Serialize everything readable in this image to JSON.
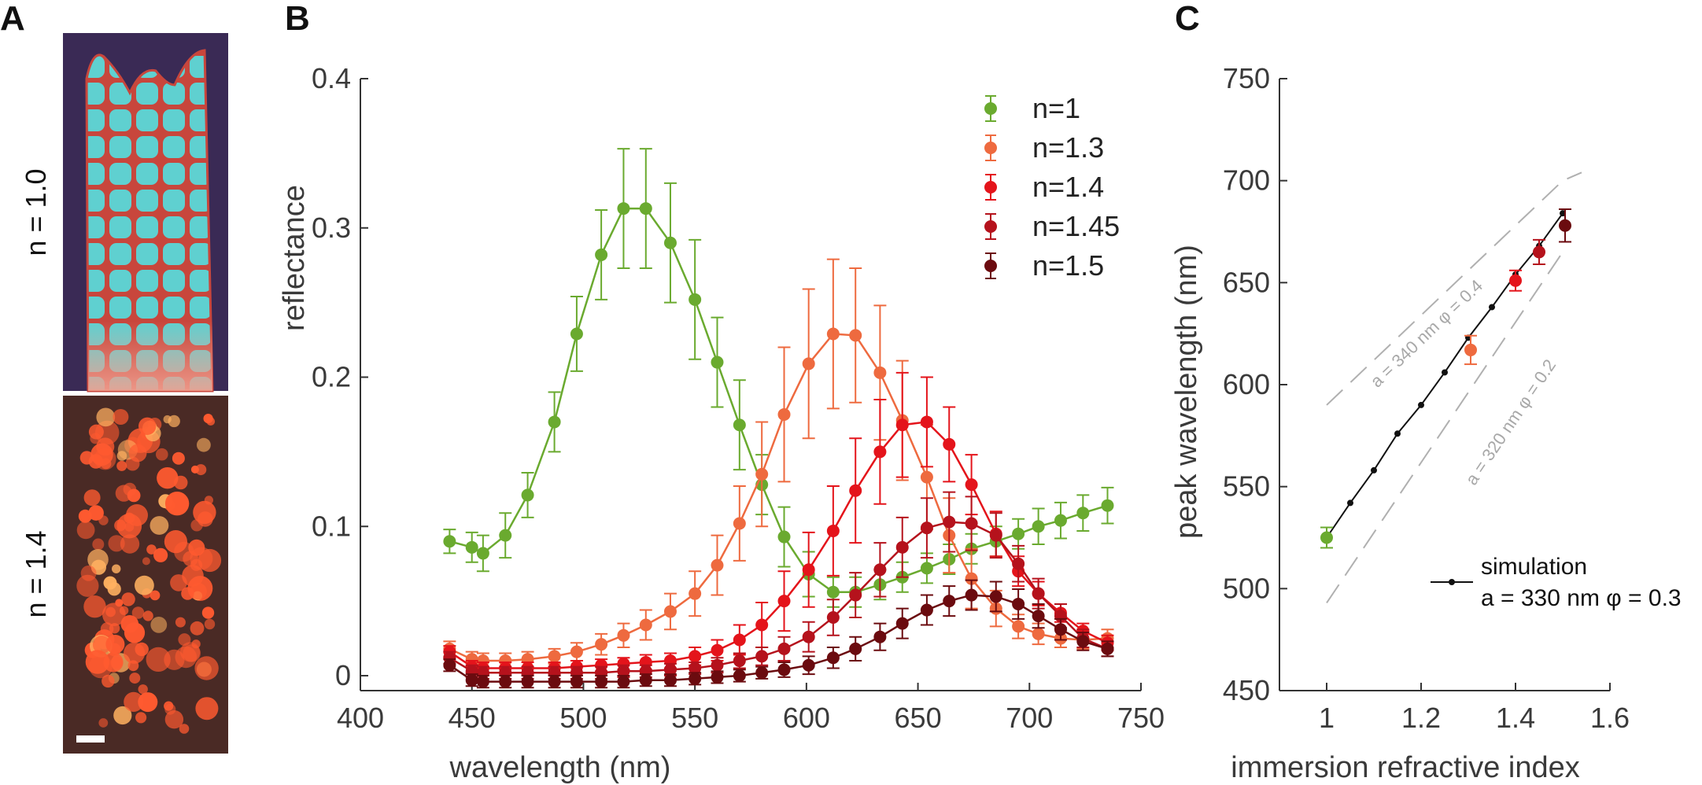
{
  "panels": {
    "a_letter": "A",
    "b_letter": "B",
    "c_letter": "C"
  },
  "photos": {
    "top_label": "n = 1.0",
    "bottom_label": "n = 1.4",
    "top_colors": {
      "background": "#3a2a55",
      "cell": "#5fd0d0",
      "base": "#f0a090",
      "border": "#c8463c"
    },
    "bottom_colors": {
      "background": "#4a2a25",
      "cell": "#ff5a30",
      "highlight": "#ffb060"
    }
  },
  "chart_data": [
    {
      "type": "line",
      "panel": "B",
      "xlabel": "wavelength (nm)",
      "ylabel": "reflectance",
      "xlim": [
        400,
        750
      ],
      "ylim": [
        -0.01,
        0.4
      ],
      "xticks": [
        400,
        450,
        500,
        550,
        600,
        650,
        700,
        750
      ],
      "yticks": [
        0,
        0.1,
        0.2,
        0.3,
        0.4
      ],
      "ytick_labels": [
        "0",
        "0.1",
        "0.2",
        "0.3",
        "0.4"
      ],
      "legend_position": "top-right",
      "x": [
        440,
        450,
        455,
        465,
        475,
        487,
        497,
        508,
        518,
        528,
        539,
        550,
        560,
        570,
        580,
        590,
        601,
        612,
        622,
        633,
        643,
        654,
        664,
        674,
        685,
        695,
        704,
        714,
        724,
        735
      ],
      "series": [
        {
          "name": "n=1",
          "color": "#6aaa2f",
          "values": [
            0.09,
            0.086,
            0.082,
            0.094,
            0.121,
            0.17,
            0.229,
            0.282,
            0.313,
            0.313,
            0.29,
            0.252,
            0.21,
            0.168,
            0.128,
            0.093,
            0.068,
            0.056,
            0.056,
            0.061,
            0.066,
            0.072,
            0.078,
            0.085,
            0.09,
            0.095,
            0.1,
            0.104,
            0.109,
            0.114
          ],
          "errors": [
            0.008,
            0.01,
            0.012,
            0.015,
            0.015,
            0.02,
            0.025,
            0.03,
            0.04,
            0.04,
            0.04,
            0.04,
            0.03,
            0.03,
            0.02,
            0.02,
            0.015,
            0.01,
            0.01,
            0.01,
            0.01,
            0.01,
            0.01,
            0.01,
            0.01,
            0.01,
            0.012,
            0.012,
            0.012,
            0.012
          ]
        },
        {
          "name": "n=1.3",
          "color": "#ee6a3f",
          "values": [
            0.018,
            0.011,
            0.01,
            0.01,
            0.011,
            0.013,
            0.016,
            0.021,
            0.027,
            0.034,
            0.043,
            0.055,
            0.074,
            0.102,
            0.135,
            0.175,
            0.209,
            0.229,
            0.228,
            0.203,
            0.171,
            0.133,
            0.094,
            0.065,
            0.045,
            0.033,
            0.028,
            0.025,
            0.024,
            0.025
          ],
          "errors": [
            0.005,
            0.005,
            0.005,
            0.005,
            0.005,
            0.005,
            0.006,
            0.007,
            0.008,
            0.01,
            0.012,
            0.015,
            0.02,
            0.025,
            0.035,
            0.045,
            0.05,
            0.05,
            0.045,
            0.045,
            0.04,
            0.035,
            0.025,
            0.02,
            0.012,
            0.008,
            0.007,
            0.006,
            0.006,
            0.006
          ]
        },
        {
          "name": "n=1.4",
          "color": "#e4141b",
          "values": [
            0.016,
            0.006,
            0.005,
            0.005,
            0.005,
            0.005,
            0.006,
            0.007,
            0.008,
            0.009,
            0.01,
            0.013,
            0.017,
            0.024,
            0.034,
            0.05,
            0.071,
            0.097,
            0.124,
            0.15,
            0.168,
            0.17,
            0.155,
            0.128,
            0.095,
            0.07,
            0.055,
            0.042,
            0.03,
            0.022
          ],
          "errors": [
            0.004,
            0.004,
            0.004,
            0.004,
            0.004,
            0.004,
            0.004,
            0.004,
            0.004,
            0.005,
            0.005,
            0.006,
            0.007,
            0.01,
            0.015,
            0.02,
            0.025,
            0.03,
            0.035,
            0.035,
            0.035,
            0.03,
            0.025,
            0.02,
            0.015,
            0.01,
            0.008,
            0.006,
            0.005,
            0.005
          ]
        },
        {
          "name": "n=1.45",
          "color": "#b5121c",
          "values": [
            0.012,
            0.003,
            0.002,
            0.002,
            0.002,
            0.002,
            0.002,
            0.002,
            0.003,
            0.003,
            0.004,
            0.005,
            0.007,
            0.01,
            0.013,
            0.018,
            0.026,
            0.039,
            0.054,
            0.071,
            0.086,
            0.099,
            0.103,
            0.102,
            0.094,
            0.075,
            0.055,
            0.04,
            0.025,
            0.018
          ],
          "errors": [
            0.004,
            0.004,
            0.004,
            0.004,
            0.004,
            0.004,
            0.004,
            0.004,
            0.004,
            0.004,
            0.004,
            0.004,
            0.005,
            0.005,
            0.006,
            0.008,
            0.01,
            0.012,
            0.015,
            0.018,
            0.02,
            0.02,
            0.02,
            0.018,
            0.015,
            0.012,
            0.01,
            0.008,
            0.006,
            0.005
          ]
        },
        {
          "name": "n=1.5",
          "color": "#6b0b0f",
          "values": [
            0.007,
            -0.003,
            -0.004,
            -0.004,
            -0.004,
            -0.004,
            -0.004,
            -0.004,
            -0.004,
            -0.003,
            -0.003,
            -0.002,
            -0.001,
            0.0,
            0.002,
            0.004,
            0.007,
            0.012,
            0.018,
            0.026,
            0.035,
            0.044,
            0.05,
            0.054,
            0.053,
            0.048,
            0.04,
            0.031,
            0.023,
            0.018
          ],
          "errors": [
            0.004,
            0.004,
            0.004,
            0.004,
            0.004,
            0.004,
            0.004,
            0.004,
            0.004,
            0.004,
            0.004,
            0.004,
            0.004,
            0.004,
            0.004,
            0.005,
            0.006,
            0.007,
            0.008,
            0.009,
            0.01,
            0.01,
            0.01,
            0.01,
            0.01,
            0.01,
            0.008,
            0.007,
            0.006,
            0.005
          ]
        }
      ]
    },
    {
      "type": "scatter",
      "panel": "C",
      "xlabel": "immersion refractive index",
      "ylabel": "peak wavelength (nm)",
      "xlim": [
        0.9,
        1.6
      ],
      "ylim": [
        450,
        750
      ],
      "xticks": [
        1,
        1.2,
        1.4,
        1.6
      ],
      "xtick_labels": [
        "1",
        "1.2",
        "1.4",
        "1.6"
      ],
      "yticks": [
        450,
        500,
        550,
        600,
        650,
        700,
        750
      ],
      "measured": [
        {
          "n": 1.0,
          "peak": 525,
          "err": 5,
          "color": "#6aaa2f"
        },
        {
          "n": 1.3,
          "peak": 617,
          "err": 7,
          "color": "#ee6a3f"
        },
        {
          "n": 1.4,
          "peak": 651,
          "err": 5,
          "color": "#e4141b"
        },
        {
          "n": 1.45,
          "peak": 665,
          "err": 6,
          "color": "#b5121c"
        },
        {
          "n": 1.5,
          "peak": 678,
          "err": 8,
          "color": "#6b0b0f"
        }
      ],
      "simulation": {
        "n": [
          1.0,
          1.05,
          1.1,
          1.15,
          1.2,
          1.25,
          1.3,
          1.35,
          1.4,
          1.45,
          1.5
        ],
        "peak": [
          525,
          542,
          558,
          576,
          590,
          606,
          623,
          638,
          654,
          668,
          684
        ],
        "color": "#111111"
      },
      "dashed_upper": {
        "n": [
          1.0,
          1.5
        ],
        "peak": [
          590,
          700
        ],
        "end_peak": 704,
        "color": "#b0b0b0"
      },
      "dashed_lower": {
        "n": [
          1.0,
          1.5
        ],
        "peak": [
          493,
          665
        ],
        "color": "#b0b0b0"
      },
      "annotation_upper": "a = 340 nm  φ = 0.4",
      "annotation_lower": "a = 320 nm  φ = 0.2",
      "legend_title": "simulation",
      "legend_params": "a = 330 nm  φ = 0.3"
    }
  ]
}
